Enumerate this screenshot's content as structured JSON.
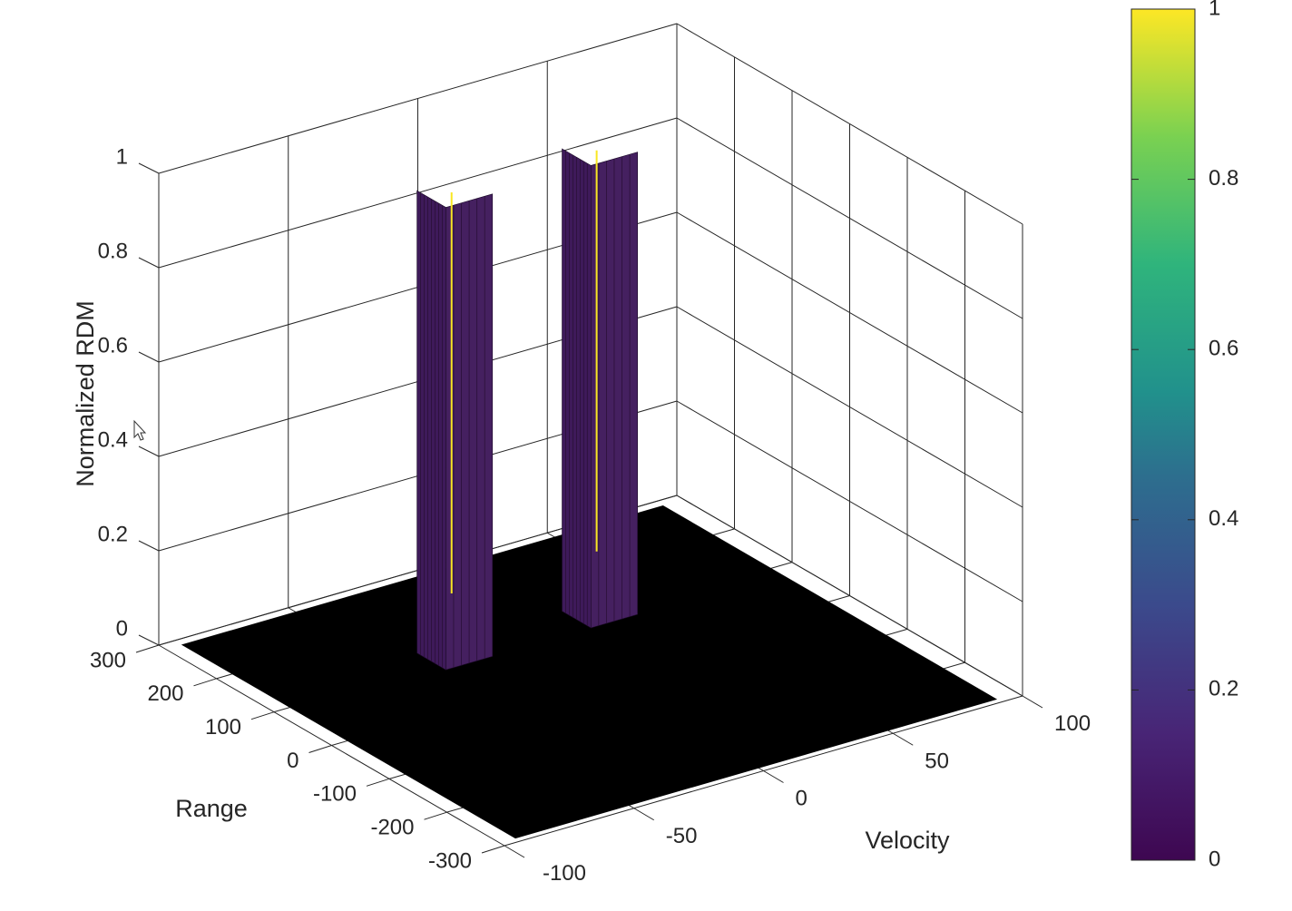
{
  "chart_data": {
    "type": "surface",
    "zlabel": "Normalized RDM",
    "xlabel": "Velocity",
    "ylabel": "Range",
    "xlim": [
      -100,
      100
    ],
    "ylim": [
      -300,
      300
    ],
    "zlim": [
      0,
      1
    ],
    "x_ticks": [
      "-100",
      "-50",
      "0",
      "50",
      "100"
    ],
    "y_ticks": [
      "-300",
      "-200",
      "-100",
      "0",
      "100",
      "200",
      "300"
    ],
    "z_ticks": [
      "0",
      "0.2",
      "0.4",
      "0.6",
      "0.8",
      "1"
    ],
    "grid": true,
    "floor_value": 0,
    "peaks": [
      {
        "velocity": -28,
        "range": 110,
        "height": 1
      },
      {
        "velocity": 28,
        "range": 110,
        "height": 1
      }
    ],
    "colorbar": {
      "colormap": "parula",
      "ticks": [
        "0",
        "0.2",
        "0.4",
        "0.6",
        "0.8",
        "1"
      ],
      "range": [
        0,
        1
      ]
    },
    "colors": {
      "floor": "#000000",
      "peak_low": "#3e1a5a",
      "peak_high": "#f9e721"
    }
  }
}
